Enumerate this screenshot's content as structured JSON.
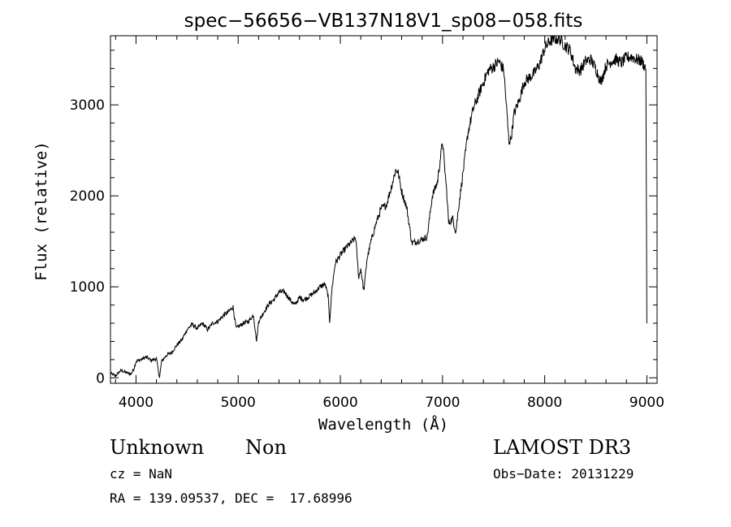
{
  "chart_data": {
    "type": "line",
    "title": "spec−56656−VB137N18V1_sp08−058.fits",
    "xlabel": "Wavelength (Å)",
    "ylabel": "Flux (relative)",
    "xlim": [
      3750,
      9100
    ],
    "ylim": [
      -60,
      3760
    ],
    "x_ticks": [
      4000,
      5000,
      6000,
      7000,
      8000,
      9000
    ],
    "y_ticks": [
      0,
      1000,
      2000,
      3000
    ],
    "series": [
      {
        "x": [
          3750,
          3800,
          3850,
          3900,
          3950,
          3980,
          4000,
          4050,
          4100,
          4150,
          4200,
          4230,
          4250,
          4300,
          4350,
          4400,
          4450,
          4500,
          4550,
          4600,
          4650,
          4700,
          4750,
          4800,
          4850,
          4900,
          4950,
          4980,
          5000,
          5050,
          5100,
          5150,
          5180,
          5200,
          5250,
          5300,
          5350,
          5400,
          5450,
          5500,
          5550,
          5600,
          5650,
          5700,
          5750,
          5800,
          5850,
          5880,
          5895,
          5920,
          5950,
          6000,
          6050,
          6100,
          6150,
          6180,
          6200,
          6230,
          6260,
          6300,
          6350,
          6400,
          6450,
          6500,
          6540,
          6563,
          6600,
          6650,
          6700,
          6750,
          6800,
          6850,
          6900,
          6950,
          7000,
          7040,
          7060,
          7100,
          7130,
          7160,
          7200,
          7250,
          7300,
          7350,
          7400,
          7450,
          7500,
          7550,
          7600,
          7650,
          7670,
          7700,
          7750,
          7800,
          7850,
          7900,
          7950,
          8000,
          8050,
          8100,
          8150,
          8200,
          8250,
          8300,
          8350,
          8400,
          8450,
          8500,
          8550,
          8600,
          8650,
          8700,
          8750,
          8800,
          8850,
          8900,
          8950,
          8990,
          9000
        ],
        "y": [
          50,
          20,
          80,
          60,
          40,
          100,
          180,
          200,
          230,
          190,
          210,
          0,
          180,
          250,
          280,
          360,
          420,
          530,
          590,
          540,
          600,
          530,
          600,
          620,
          680,
          720,
          780,
          540,
          560,
          600,
          620,
          690,
          400,
          620,
          720,
          810,
          860,
          940,
          950,
          870,
          800,
          880,
          860,
          900,
          940,
          1000,
          1030,
          900,
          620,
          1000,
          1260,
          1350,
          1420,
          1480,
          1540,
          1100,
          1200,
          950,
          1300,
          1500,
          1700,
          1860,
          1900,
          2100,
          2280,
          2270,
          2050,
          1870,
          1480,
          1500,
          1520,
          1550,
          2000,
          2150,
          2600,
          2050,
          1700,
          1750,
          1600,
          1900,
          2250,
          2700,
          2950,
          3100,
          3250,
          3380,
          3420,
          3480,
          3380,
          2600,
          2620,
          2900,
          3050,
          3250,
          3300,
          3350,
          3450,
          3620,
          3700,
          3730,
          3720,
          3650,
          3600,
          3400,
          3380,
          3480,
          3500,
          3400,
          3250,
          3430,
          3480,
          3500,
          3460,
          3520,
          3530,
          3500,
          3480,
          3400,
          600
        ]
      }
    ]
  },
  "footer": {
    "object_type": "Unknown",
    "subclass": "Non",
    "survey": "LAMOST DR3",
    "cz": "cz = NaN",
    "obs_date": "Obs−Date: 20131229",
    "coords": "RA = 139.09537, DEC =  17.68996"
  }
}
